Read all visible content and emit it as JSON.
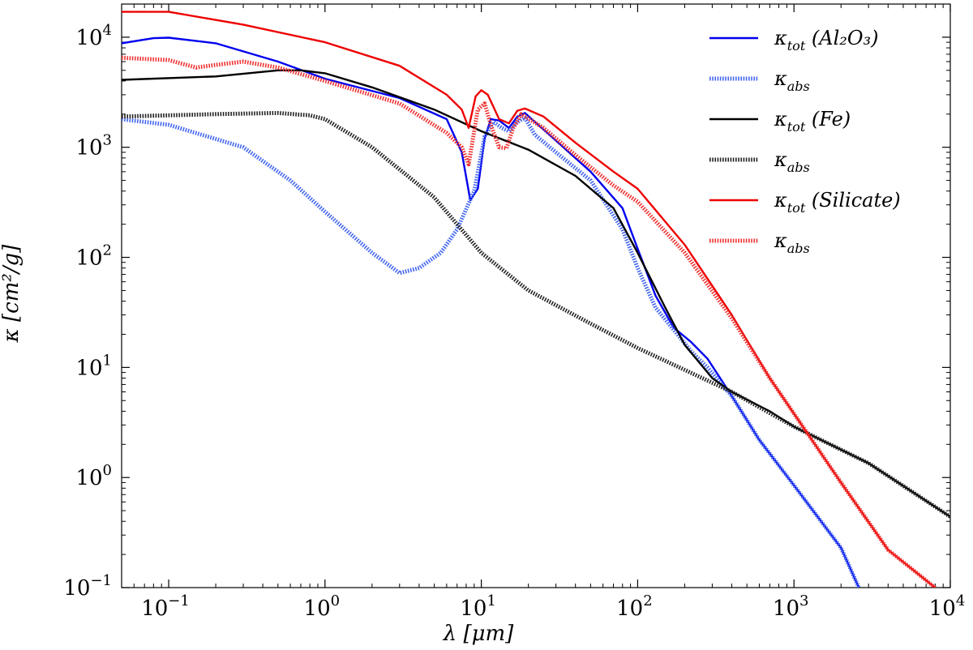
{
  "chart_data": {
    "type": "line",
    "x_scale": "log",
    "y_scale": "log",
    "xlim": [
      0.05,
      10000
    ],
    "ylim": [
      0.1,
      20000
    ],
    "xlabel": "λ [μm]",
    "ylabel": "κ [cm²/g]",
    "x_ticks": [
      {
        "base": "10",
        "exp": "−1",
        "value": 0.1
      },
      {
        "base": "10",
        "exp": "0",
        "value": 1
      },
      {
        "base": "10",
        "exp": "1",
        "value": 10
      },
      {
        "base": "10",
        "exp": "2",
        "value": 100
      },
      {
        "base": "10",
        "exp": "3",
        "value": 1000
      },
      {
        "base": "10",
        "exp": "4",
        "value": 10000
      }
    ],
    "y_ticks": [
      {
        "base": "10",
        "exp": "−1",
        "value": 0.1
      },
      {
        "base": "10",
        "exp": "0",
        "value": 1
      },
      {
        "base": "10",
        "exp": "1",
        "value": 10
      },
      {
        "base": "10",
        "exp": "2",
        "value": 100
      },
      {
        "base": "10",
        "exp": "3",
        "value": 1000
      },
      {
        "base": "10",
        "exp": "4",
        "value": 10000
      }
    ],
    "series": [
      {
        "name": "κtot (Al2O3)",
        "legend_main": "κ",
        "legend_sub": "tot",
        "legend_extra": " (Al₂O₃)",
        "color": "#0000ee",
        "style": "solid",
        "points": [
          [
            0.05,
            8800
          ],
          [
            0.08,
            9800
          ],
          [
            0.1,
            9900
          ],
          [
            0.2,
            8800
          ],
          [
            0.5,
            6000
          ],
          [
            1,
            4200
          ],
          [
            3,
            2800
          ],
          [
            6,
            1800
          ],
          [
            7.5,
            900
          ],
          [
            8.5,
            330
          ],
          [
            9.5,
            420
          ],
          [
            10.5,
            1200
          ],
          [
            11.5,
            1800
          ],
          [
            13,
            1750
          ],
          [
            15,
            1500
          ],
          [
            17,
            1900
          ],
          [
            19,
            2050
          ],
          [
            22,
            1700
          ],
          [
            30,
            1150
          ],
          [
            50,
            600
          ],
          [
            80,
            280
          ],
          [
            100,
            120
          ],
          [
            130,
            45
          ],
          [
            170,
            23
          ],
          [
            220,
            17
          ],
          [
            280,
            12
          ],
          [
            400,
            5.5
          ],
          [
            600,
            2.2
          ],
          [
            1000,
            0.85
          ],
          [
            2000,
            0.23
          ],
          [
            2600,
            0.1
          ]
        ]
      },
      {
        "name": "κabs (Al2O3)",
        "legend_main": "κ",
        "legend_sub": "abs",
        "legend_extra": "",
        "color": "#4466ee",
        "style": "dotted",
        "points": [
          [
            0.05,
            1800
          ],
          [
            0.1,
            1600
          ],
          [
            0.3,
            1000
          ],
          [
            0.6,
            500
          ],
          [
            1,
            260
          ],
          [
            2,
            110
          ],
          [
            3,
            72
          ],
          [
            4,
            80
          ],
          [
            5.5,
            110
          ],
          [
            7,
            180
          ],
          [
            9,
            400
          ],
          [
            10.5,
            1250
          ],
          [
            12,
            1700
          ],
          [
            13.5,
            1500
          ],
          [
            15,
            1400
          ],
          [
            17,
            1700
          ],
          [
            19,
            1850
          ],
          [
            22,
            1300
          ],
          [
            30,
            900
          ],
          [
            50,
            500
          ],
          [
            80,
            180
          ],
          [
            100,
            80
          ],
          [
            130,
            35
          ],
          [
            170,
            22
          ],
          [
            220,
            14
          ],
          [
            280,
            10
          ],
          [
            400,
            5.5
          ],
          [
            600,
            2.2
          ],
          [
            1000,
            0.85
          ],
          [
            2000,
            0.23
          ],
          [
            2600,
            0.1
          ]
        ]
      },
      {
        "name": "κtot (Fe)",
        "legend_main": "κ",
        "legend_sub": "tot",
        "legend_extra": " (Fe)",
        "color": "#000000",
        "style": "solid",
        "points": [
          [
            0.05,
            4100
          ],
          [
            0.2,
            4400
          ],
          [
            0.5,
            5000
          ],
          [
            0.7,
            5000
          ],
          [
            1,
            4700
          ],
          [
            2,
            3500
          ],
          [
            5,
            2200
          ],
          [
            10,
            1400
          ],
          [
            20,
            950
          ],
          [
            40,
            550
          ],
          [
            70,
            280
          ],
          [
            100,
            110
          ],
          [
            150,
            35
          ],
          [
            200,
            16
          ],
          [
            300,
            8
          ],
          [
            400,
            6
          ],
          [
            700,
            4
          ],
          [
            1000,
            2.9
          ],
          [
            3000,
            1.35
          ],
          [
            10000,
            0.44
          ]
        ]
      },
      {
        "name": "κabs (Fe)",
        "legend_main": "κ",
        "legend_sub": "abs",
        "legend_extra": "",
        "color": "#222222",
        "style": "dotted",
        "points": [
          [
            0.05,
            1900
          ],
          [
            0.2,
            2000
          ],
          [
            0.5,
            2050
          ],
          [
            0.8,
            1950
          ],
          [
            1,
            1800
          ],
          [
            2,
            1000
          ],
          [
            5,
            350
          ],
          [
            10,
            110
          ],
          [
            20,
            50
          ],
          [
            50,
            25
          ],
          [
            100,
            15
          ],
          [
            200,
            9.5
          ],
          [
            400,
            6
          ],
          [
            1000,
            2.9
          ],
          [
            3000,
            1.35
          ],
          [
            10000,
            0.44
          ]
        ]
      },
      {
        "name": "κtot (Silicate)",
        "legend_main": "κ",
        "legend_sub": "tot",
        "legend_extra": " (Silicate)",
        "color": "#ee0000",
        "style": "solid",
        "points": [
          [
            0.05,
            17000
          ],
          [
            0.1,
            17000
          ],
          [
            0.3,
            13000
          ],
          [
            1,
            9000
          ],
          [
            3,
            5500
          ],
          [
            6,
            3000
          ],
          [
            7.5,
            2200
          ],
          [
            8.3,
            1500
          ],
          [
            9.2,
            2900
          ],
          [
            10,
            3300
          ],
          [
            11,
            3000
          ],
          [
            13,
            1800
          ],
          [
            15,
            1650
          ],
          [
            17,
            2150
          ],
          [
            19,
            2250
          ],
          [
            25,
            1900
          ],
          [
            40,
            1100
          ],
          [
            70,
            600
          ],
          [
            100,
            420
          ],
          [
            200,
            130
          ],
          [
            400,
            30
          ],
          [
            700,
            8
          ],
          [
            1000,
            3.8
          ],
          [
            2000,
            0.9
          ],
          [
            4000,
            0.22
          ],
          [
            8000,
            0.1
          ]
        ]
      },
      {
        "name": "κabs (Silicate)",
        "legend_main": "κ",
        "legend_sub": "abs",
        "legend_extra": "",
        "color": "#ee3333",
        "style": "dotted",
        "points": [
          [
            0.05,
            6500
          ],
          [
            0.1,
            6200
          ],
          [
            0.15,
            5300
          ],
          [
            0.2,
            5600
          ],
          [
            0.3,
            6000
          ],
          [
            0.5,
            5300
          ],
          [
            1,
            4000
          ],
          [
            3,
            2500
          ],
          [
            6,
            1350
          ],
          [
            7.5,
            1000
          ],
          [
            8.3,
            700
          ],
          [
            9.5,
            2200
          ],
          [
            10.5,
            2500
          ],
          [
            11.5,
            1600
          ],
          [
            13,
            1000
          ],
          [
            14.5,
            980
          ],
          [
            16,
            1500
          ],
          [
            18,
            2000
          ],
          [
            25,
            1500
          ],
          [
            40,
            850
          ],
          [
            70,
            450
          ],
          [
            100,
            320
          ],
          [
            200,
            110
          ],
          [
            400,
            28
          ],
          [
            700,
            8
          ],
          [
            1000,
            3.8
          ],
          [
            2000,
            0.9
          ],
          [
            4000,
            0.22
          ],
          [
            8000,
            0.1
          ]
        ]
      }
    ]
  }
}
